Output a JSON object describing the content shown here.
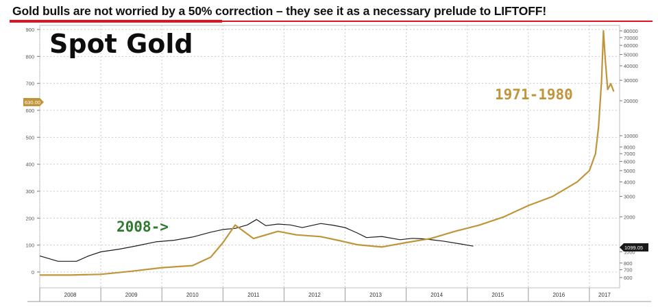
{
  "headline": "Gold bulls are not worried by a 50% correction – they see it as a necessary prelude to LIFTOFF!",
  "chart_data": {
    "type": "line",
    "title": "Spot Gold",
    "annotations": [
      "2008->",
      "1971-1980"
    ],
    "x_categories": [
      "2008",
      "2009",
      "2010",
      "2011",
      "2012",
      "2013",
      "2014",
      "2015",
      "2016",
      "2017"
    ],
    "left_axis": {
      "ticks": [
        0,
        100,
        200,
        300,
        400,
        500,
        600,
        700,
        800,
        900
      ],
      "range": [
        -10,
        910
      ],
      "badge": "630.00"
    },
    "right_axis": {
      "scale": "log",
      "ticks": [
        600,
        700,
        800,
        1000,
        2000,
        3000,
        4000,
        5000,
        6000,
        7000,
        8000,
        10000,
        20000,
        30000,
        40000,
        50000,
        60000,
        70000,
        80000
      ],
      "badge": "1099.05"
    },
    "series": [
      {
        "color": "#1a1a1a",
        "x": [
          2008.0,
          2008.3,
          2008.6,
          2008.8,
          2009.0,
          2009.3,
          2009.6,
          2009.9,
          2010.2,
          2010.5,
          2010.8,
          2011.0,
          2011.2,
          2011.4,
          2011.55,
          2011.7,
          2011.9,
          2012.1,
          2012.3,
          2012.6,
          2012.8,
          2013.0,
          2013.2,
          2013.35,
          2013.6,
          2013.9,
          2014.1,
          2014.3,
          2014.6,
          2014.9,
          2015.0,
          2015.1
        ],
        "y": [
          60,
          40,
          40,
          60,
          75,
          85,
          98,
          112,
          118,
          130,
          148,
          158,
          162,
          175,
          195,
          172,
          178,
          175,
          165,
          180,
          174,
          165,
          145,
          128,
          132,
          120,
          125,
          123,
          115,
          104,
          100,
          96
        ]
      },
      {
        "color": "#c0953a",
        "x": [
          2008.0,
          2008.5,
          2009.0,
          2009.5,
          2010.0,
          2010.5,
          2010.8,
          2011.0,
          2011.2,
          2011.5,
          2011.9,
          2012.2,
          2012.6,
          2012.9,
          2013.2,
          2013.6,
          2014.0,
          2014.4,
          2014.8,
          2015.2,
          2015.6,
          2016.0,
          2016.4,
          2016.8,
          2017.0,
          2017.1,
          2017.15,
          2017.2,
          2017.23,
          2017.26,
          2017.3,
          2017.35,
          2017.4
        ],
        "y": [
          630,
          630,
          640,
          680,
          730,
          760,
          900,
          1200,
          1700,
          1300,
          1500,
          1400,
          1350,
          1250,
          1150,
          1100,
          1200,
          1300,
          1500,
          1700,
          2000,
          2500,
          3000,
          4000,
          5000,
          7000,
          12000,
          30000,
          80000,
          45000,
          25000,
          28000,
          24000
        ]
      }
    ],
    "grid": true,
    "legend": "none"
  }
}
